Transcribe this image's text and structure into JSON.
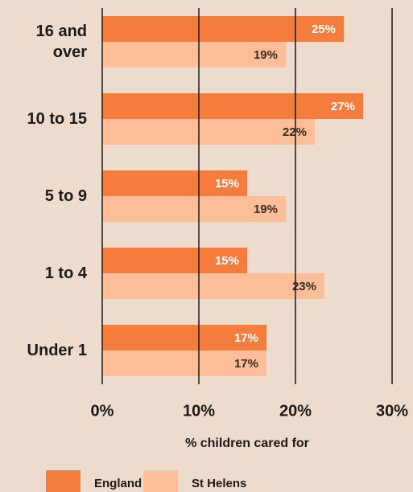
{
  "chart_data": {
    "type": "barh",
    "categories": [
      "16 and over",
      "10 to 15",
      "5 to 9",
      "1 to 4",
      "Under 1"
    ],
    "series": [
      {
        "name": "England",
        "color": "#f47c3c",
        "values": [
          25,
          27,
          15,
          15,
          17
        ],
        "value_labels": [
          "25%",
          "27%",
          "15%",
          "15%",
          "17%"
        ]
      },
      {
        "name": "St Helens",
        "color": "#fbbe98",
        "values": [
          19,
          22,
          19,
          23,
          17
        ],
        "value_labels": [
          "19%",
          "22%",
          "19%",
          "23%",
          "17%"
        ]
      }
    ],
    "xlim": [
      0,
      30
    ],
    "xticks": [
      {
        "value": 0,
        "label": "0%"
      },
      {
        "value": 10,
        "label": "10%"
      },
      {
        "value": 20,
        "label": "20%"
      },
      {
        "value": 30,
        "label": "30%"
      }
    ],
    "xlabel": "% children cared for",
    "grid": true,
    "legend": "bottom"
  }
}
